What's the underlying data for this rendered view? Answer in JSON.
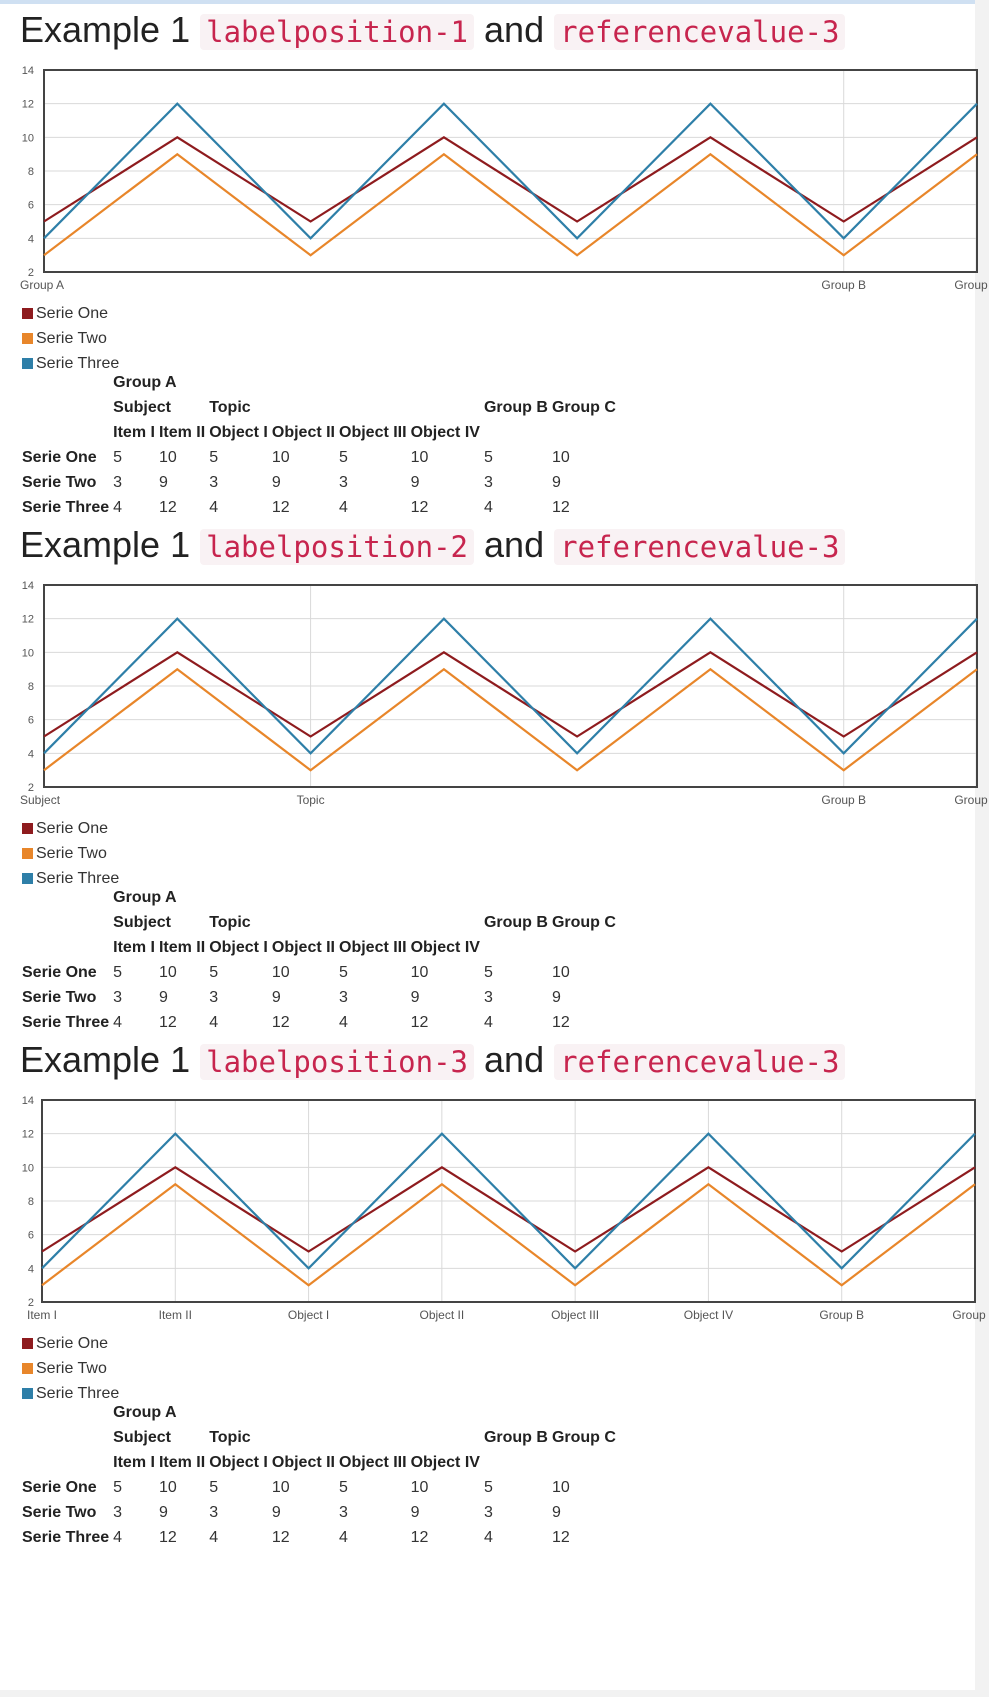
{
  "colors": {
    "serie_one": "#8e1b1e",
    "serie_two": "#e8862a",
    "serie_three": "#2e7fa8"
  },
  "examples": [
    {
      "title_prefix": "Example 1",
      "code1": "labelposition-1",
      "joiner": "and",
      "code2": "referencevalue-3",
      "legend": [
        "Serie One",
        "Serie Two",
        "Serie Three"
      ],
      "table": {
        "row1": {
          "group_a": "Group A"
        },
        "row2": {
          "subject": "Subject",
          "topic": "Topic",
          "group_b": "Group B",
          "group_c": "Group C"
        },
        "row3": [
          "Item I",
          "Item II",
          "Object I",
          "Object II",
          "Object III",
          "Object IV"
        ],
        "rows": [
          {
            "label": "Serie One",
            "values": [
              "5",
              "10",
              "5",
              "10",
              "5",
              "10",
              "5",
              "10"
            ]
          },
          {
            "label": "Serie Two",
            "values": [
              "3",
              "9",
              "3",
              "9",
              "3",
              "9",
              "3",
              "9"
            ]
          },
          {
            "label": "Serie Three",
            "values": [
              "4",
              "12",
              "4",
              "12",
              "4",
              "12",
              "4",
              "12"
            ]
          }
        ]
      }
    },
    {
      "title_prefix": "Example 1",
      "code1": "labelposition-2",
      "joiner": "and",
      "code2": "referencevalue-3",
      "legend": [
        "Serie One",
        "Serie Two",
        "Serie Three"
      ],
      "table": {
        "row1": {
          "group_a": "Group A"
        },
        "row2": {
          "subject": "Subject",
          "topic": "Topic",
          "group_b": "Group B",
          "group_c": "Group C"
        },
        "row3": [
          "Item I",
          "Item II",
          "Object I",
          "Object II",
          "Object III",
          "Object IV"
        ],
        "rows": [
          {
            "label": "Serie One",
            "values": [
              "5",
              "10",
              "5",
              "10",
              "5",
              "10",
              "5",
              "10"
            ]
          },
          {
            "label": "Serie Two",
            "values": [
              "3",
              "9",
              "3",
              "9",
              "3",
              "9",
              "3",
              "9"
            ]
          },
          {
            "label": "Serie Three",
            "values": [
              "4",
              "12",
              "4",
              "12",
              "4",
              "12",
              "4",
              "12"
            ]
          }
        ]
      }
    },
    {
      "title_prefix": "Example 1",
      "code1": "labelposition-3",
      "joiner": "and",
      "code2": "referencevalue-3",
      "legend": [
        "Serie One",
        "Serie Two",
        "Serie Three"
      ],
      "table": {
        "row1": {
          "group_a": "Group A"
        },
        "row2": {
          "subject": "Subject",
          "topic": "Topic",
          "group_b": "Group B",
          "group_c": "Group C"
        },
        "row3": [
          "Item I",
          "Item II",
          "Object I",
          "Object II",
          "Object III",
          "Object IV"
        ],
        "rows": [
          {
            "label": "Serie One",
            "values": [
              "5",
              "10",
              "5",
              "10",
              "5",
              "10",
              "5",
              "10"
            ]
          },
          {
            "label": "Serie Two",
            "values": [
              "3",
              "9",
              "3",
              "9",
              "3",
              "9",
              "3",
              "9"
            ]
          },
          {
            "label": "Serie Three",
            "values": [
              "4",
              "12",
              "4",
              "12",
              "4",
              "12",
              "4",
              "12"
            ]
          }
        ]
      }
    }
  ],
  "chart_data": [
    {
      "type": "line",
      "x_categories": [
        "Item I",
        "Item II",
        "Object I",
        "Object II",
        "Object III",
        "Object IV",
        "Group B",
        "Group C"
      ],
      "x_tick_labels": [
        "Group A",
        "Group B",
        "Group C"
      ],
      "x_tick_positions": [
        0,
        6,
        7
      ],
      "series": [
        {
          "name": "Serie One",
          "values": [
            5,
            10,
            5,
            10,
            5,
            10,
            5,
            10
          ]
        },
        {
          "name": "Serie Two",
          "values": [
            3,
            9,
            3,
            9,
            3,
            9,
            3,
            9
          ]
        },
        {
          "name": "Serie Three",
          "values": [
            4,
            12,
            4,
            12,
            4,
            12,
            4,
            12
          ]
        }
      ],
      "ylim": [
        2,
        14
      ],
      "yticks": [
        2,
        4,
        6,
        8,
        10,
        12,
        14
      ],
      "grid": true,
      "legend_position": "bottom-left"
    },
    {
      "type": "line",
      "x_categories": [
        "Item I",
        "Item II",
        "Object I",
        "Object II",
        "Object III",
        "Object IV",
        "Group B",
        "Group C"
      ],
      "x_tick_labels": [
        "Subject",
        "Topic",
        "Group B",
        "Group C"
      ],
      "x_tick_positions": [
        0,
        2,
        6,
        7
      ],
      "series": [
        {
          "name": "Serie One",
          "values": [
            5,
            10,
            5,
            10,
            5,
            10,
            5,
            10
          ]
        },
        {
          "name": "Serie Two",
          "values": [
            3,
            9,
            3,
            9,
            3,
            9,
            3,
            9
          ]
        },
        {
          "name": "Serie Three",
          "values": [
            4,
            12,
            4,
            12,
            4,
            12,
            4,
            12
          ]
        }
      ],
      "ylim": [
        2,
        14
      ],
      "yticks": [
        2,
        4,
        6,
        8,
        10,
        12,
        14
      ],
      "grid": true,
      "legend_position": "bottom-left"
    },
    {
      "type": "line",
      "x_categories": [
        "Item I",
        "Item II",
        "Object I",
        "Object II",
        "Object III",
        "Object IV",
        "Group B",
        "Group C"
      ],
      "x_tick_labels": [
        "Item I",
        "Item II",
        "Object I",
        "Object II",
        "Object III",
        "Object IV",
        "Group B",
        "Group C"
      ],
      "x_tick_positions": [
        0,
        1,
        2,
        3,
        4,
        5,
        6,
        7
      ],
      "series": [
        {
          "name": "Serie One",
          "values": [
            5,
            10,
            5,
            10,
            5,
            10,
            5,
            10
          ]
        },
        {
          "name": "Serie Two",
          "values": [
            3,
            9,
            3,
            9,
            3,
            9,
            3,
            9
          ]
        },
        {
          "name": "Serie Three",
          "values": [
            4,
            12,
            4,
            12,
            4,
            12,
            4,
            12
          ]
        }
      ],
      "ylim": [
        2,
        14
      ],
      "yticks": [
        2,
        4,
        6,
        8,
        10,
        12,
        14
      ],
      "grid": true,
      "legend_position": "bottom-left"
    }
  ]
}
